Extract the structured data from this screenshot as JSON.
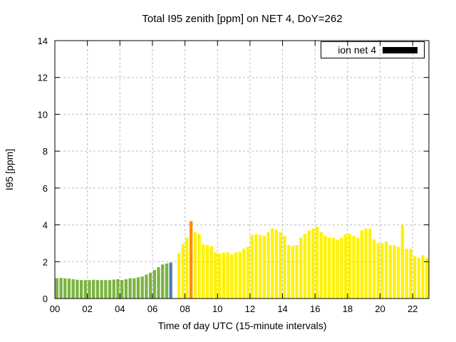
{
  "legend": {
    "label": "ion net 4",
    "swatch_color": "#000000"
  },
  "chart_data": {
    "type": "bar",
    "title": "Total I95 zenith [ppm] on NET 4, DoY=262",
    "xlabel": "Time of day UTC (15-minute intervals)",
    "ylabel": "I95 [ppm]",
    "xlim": [
      0,
      23
    ],
    "ylim": [
      0,
      14
    ],
    "xticks": [
      "00",
      "02",
      "04",
      "06",
      "08",
      "10",
      "12",
      "14",
      "16",
      "18",
      "20",
      "22"
    ],
    "yticks": [
      0,
      2,
      4,
      6,
      8,
      10,
      12,
      14
    ],
    "grid": true,
    "legend_position": "top-right",
    "bar_interval_hours": 0.25,
    "colors": {
      "g": "#7CB342",
      "y": "#FFF200",
      "o": "#FF8C00",
      "b": "#4682B4",
      "grid": "#BDBDBD",
      "frame": "#000000"
    },
    "bars": [
      [
        0.0,
        1.1,
        "g"
      ],
      [
        0.25,
        1.12,
        "g"
      ],
      [
        0.5,
        1.1,
        "g"
      ],
      [
        0.75,
        1.08,
        "g"
      ],
      [
        1.0,
        1.05,
        "g"
      ],
      [
        1.25,
        1.02,
        "g"
      ],
      [
        1.5,
        1.0,
        "g"
      ],
      [
        1.75,
        1.0,
        "g"
      ],
      [
        2.0,
        1.0,
        "g"
      ],
      [
        2.25,
        1.02,
        "g"
      ],
      [
        2.5,
        1.0,
        "g"
      ],
      [
        2.75,
        1.0,
        "g"
      ],
      [
        3.0,
        1.0,
        "g"
      ],
      [
        3.25,
        1.0,
        "g"
      ],
      [
        3.5,
        1.03,
        "g"
      ],
      [
        3.75,
        1.05,
        "g"
      ],
      [
        4.0,
        1.0,
        "g"
      ],
      [
        4.25,
        1.05,
        "g"
      ],
      [
        4.5,
        1.1,
        "g"
      ],
      [
        4.75,
        1.1,
        "g"
      ],
      [
        5.0,
        1.15,
        "g"
      ],
      [
        5.25,
        1.2,
        "g"
      ],
      [
        5.5,
        1.3,
        "g"
      ],
      [
        5.75,
        1.4,
        "g"
      ],
      [
        6.0,
        1.55,
        "g"
      ],
      [
        6.25,
        1.7,
        "g"
      ],
      [
        6.5,
        1.85,
        "g"
      ],
      [
        6.75,
        1.9,
        "g"
      ],
      [
        7.0,
        1.95,
        "b"
      ],
      [
        7.5,
        2.45,
        "y"
      ],
      [
        7.75,
        2.95,
        "y"
      ],
      [
        8.0,
        3.3,
        "y"
      ],
      [
        8.25,
        4.2,
        "o"
      ],
      [
        8.5,
        3.6,
        "y"
      ],
      [
        8.75,
        3.5,
        "y"
      ],
      [
        9.0,
        2.95,
        "y"
      ],
      [
        9.25,
        2.9,
        "y"
      ],
      [
        9.5,
        2.85,
        "y"
      ],
      [
        9.75,
        2.5,
        "y"
      ],
      [
        10.0,
        2.45,
        "y"
      ],
      [
        10.25,
        2.5,
        "y"
      ],
      [
        10.5,
        2.5,
        "y"
      ],
      [
        10.75,
        2.4,
        "y"
      ],
      [
        11.0,
        2.5,
        "y"
      ],
      [
        11.25,
        2.55,
        "y"
      ],
      [
        11.5,
        2.7,
        "y"
      ],
      [
        11.75,
        2.8,
        "y"
      ],
      [
        12.0,
        3.45,
        "y"
      ],
      [
        12.25,
        3.5,
        "y"
      ],
      [
        12.5,
        3.45,
        "y"
      ],
      [
        12.75,
        3.4,
        "y"
      ],
      [
        13.0,
        3.6,
        "y"
      ],
      [
        13.25,
        3.8,
        "y"
      ],
      [
        13.5,
        3.75,
        "y"
      ],
      [
        13.75,
        3.6,
        "y"
      ],
      [
        14.0,
        3.4,
        "y"
      ],
      [
        14.25,
        2.9,
        "y"
      ],
      [
        14.5,
        2.85,
        "y"
      ],
      [
        14.75,
        2.9,
        "y"
      ],
      [
        15.0,
        3.3,
        "y"
      ],
      [
        15.25,
        3.5,
        "y"
      ],
      [
        15.5,
        3.7,
        "y"
      ],
      [
        15.75,
        3.8,
        "y"
      ],
      [
        16.0,
        3.9,
        "y"
      ],
      [
        16.25,
        3.6,
        "y"
      ],
      [
        16.5,
        3.4,
        "y"
      ],
      [
        16.75,
        3.3,
        "y"
      ],
      [
        17.0,
        3.3,
        "y"
      ],
      [
        17.25,
        3.2,
        "y"
      ],
      [
        17.5,
        3.3,
        "y"
      ],
      [
        17.75,
        3.5,
        "y"
      ],
      [
        18.0,
        3.5,
        "y"
      ],
      [
        18.25,
        3.4,
        "y"
      ],
      [
        18.5,
        3.3,
        "y"
      ],
      [
        18.75,
        3.7,
        "y"
      ],
      [
        19.0,
        3.8,
        "y"
      ],
      [
        19.25,
        3.8,
        "y"
      ],
      [
        19.5,
        3.2,
        "y"
      ],
      [
        19.75,
        3.0,
        "y"
      ],
      [
        20.0,
        3.0,
        "y"
      ],
      [
        20.25,
        3.1,
        "y"
      ],
      [
        20.5,
        2.9,
        "y"
      ],
      [
        20.75,
        2.9,
        "y"
      ],
      [
        21.0,
        2.8,
        "y"
      ],
      [
        21.25,
        4.0,
        "y"
      ],
      [
        21.5,
        2.7,
        "y"
      ],
      [
        21.75,
        2.7,
        "y"
      ],
      [
        22.0,
        2.3,
        "y"
      ],
      [
        22.25,
        2.2,
        "y"
      ],
      [
        22.5,
        2.35,
        "y"
      ],
      [
        22.75,
        2.2,
        "y"
      ]
    ]
  }
}
